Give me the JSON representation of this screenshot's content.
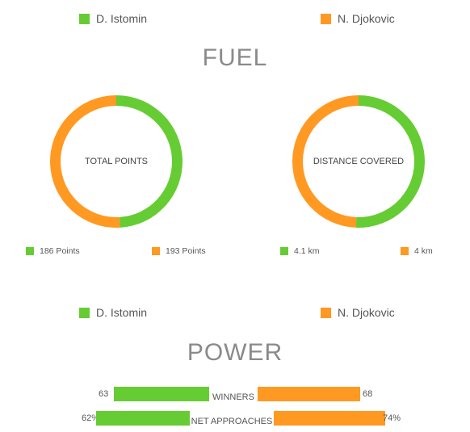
{
  "colors": {
    "player1": "#66cc33",
    "player2": "#ff9922",
    "title": "#8a8a8a"
  },
  "legend": {
    "player1": "D. Istomin",
    "player2": "N. Djokovic"
  },
  "fuel": {
    "title": "FUEL",
    "donuts": [
      {
        "label": "TOTAL POINTS",
        "p1_value": 186,
        "p2_value": 193,
        "p1_text": "186 Points",
        "p2_text": "193 Points"
      },
      {
        "label": "DISTANCE COVERED",
        "p1_value": 4.1,
        "p2_value": 4,
        "p1_text": "4.1 km",
        "p2_text": "4 km"
      }
    ]
  },
  "power": {
    "title": "POWER",
    "rows": [
      {
        "label": "WINNERS",
        "p1_text": "63",
        "p2_text": "68",
        "p1_value": 63,
        "p2_value": 68
      },
      {
        "label": "NET APPROACHES",
        "p1_text": "62%",
        "p2_text": "74%",
        "p1_value": 62,
        "p2_value": 74
      }
    ]
  }
}
